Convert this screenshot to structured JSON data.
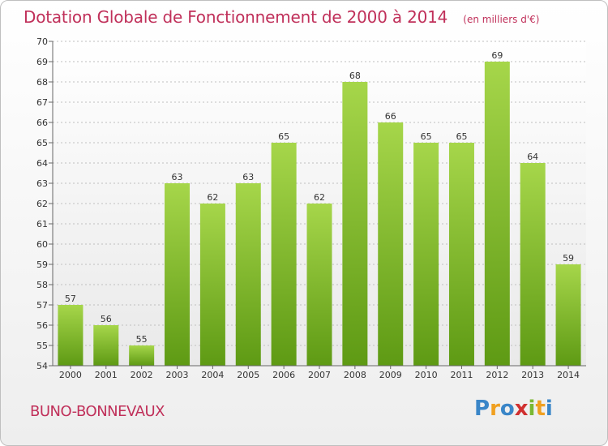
{
  "title": "Dotation Globale de Fonctionnement de 2000 à 2014",
  "unit": "(en milliers d'€)",
  "commune": "BUNO-BONNEVAUX",
  "logo": {
    "letters": [
      "P",
      "r",
      "o",
      "x",
      "i",
      "t",
      "i"
    ],
    "colors": [
      "#3a86c8",
      "#f0a020",
      "#3a86c8",
      "#d03030",
      "#7ab833",
      "#f0a020",
      "#3a86c8"
    ]
  },
  "colors": {
    "title": "#c0305a",
    "bar_light": "#a6d64a",
    "bar_dark": "#5e9a14",
    "grid": "#bfbfbf"
  },
  "chart_data": {
    "type": "bar",
    "categories": [
      "2000",
      "2001",
      "2002",
      "2003",
      "2004",
      "2005",
      "2006",
      "2007",
      "2008",
      "2009",
      "2010",
      "2011",
      "2012",
      "2013",
      "2014"
    ],
    "values": [
      57,
      56,
      55,
      63,
      62,
      63,
      65,
      62,
      68,
      66,
      65,
      65,
      69,
      64,
      59
    ],
    "yticks": [
      54,
      55,
      56,
      57,
      58,
      59,
      60,
      61,
      62,
      63,
      64,
      65,
      66,
      67,
      68,
      69,
      70
    ],
    "ylim": [
      54,
      70
    ],
    "grid": true,
    "data_labels": true
  }
}
